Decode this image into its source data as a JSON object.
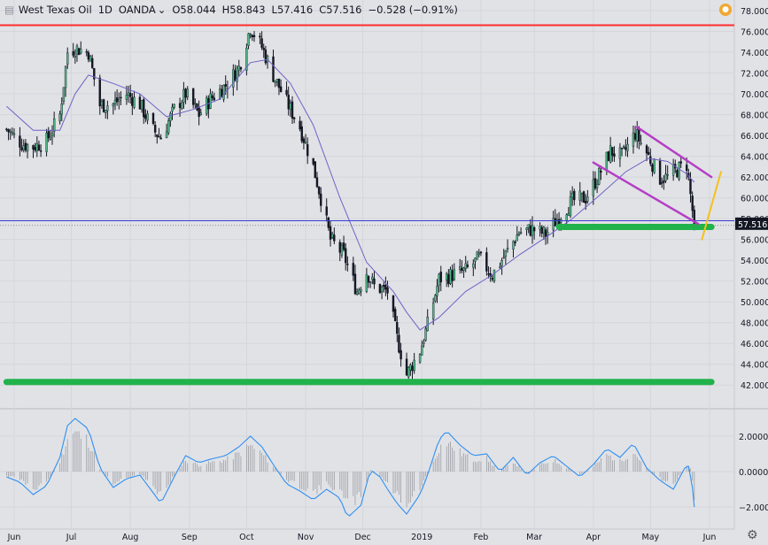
{
  "header": {
    "symbol": "West Texas Oil",
    "interval": "1D",
    "broker": "OANDA",
    "open_label": "O58.044",
    "high_label": "H58.843",
    "low_label": "L57.416",
    "close_label": "C57.516",
    "change_label": "−0.528 (−0.91%)"
  },
  "alert_icon": "alert-icon",
  "settings_icon": "gear-icon",
  "colors": {
    "background": "#e1e2e6",
    "candle_up": "#53b987",
    "candle_down": "#131722",
    "sma": "#6f62c7",
    "resistance": "#ff2d2d",
    "support": "#21b24b",
    "channel": "#b43fc5",
    "projection": "#f5c01a",
    "oscillator": "#2f8ff0",
    "price_line": "#3a3ad6"
  },
  "chart_data": [
    {
      "type": "candlestick",
      "title": "West Texas Oil 1D OANDA",
      "ylim": [
        41.0,
        78.0
      ],
      "y_ticks": [
        "78.000",
        "76.000",
        "74.000",
        "72.000",
        "70.000",
        "68.000",
        "66.000",
        "64.000",
        "62.000",
        "60.000",
        "58.000",
        "56.000",
        "54.000",
        "52.000",
        "50.000",
        "48.000",
        "46.000",
        "44.000",
        "42.000"
      ],
      "x_ticks": [
        "Jun",
        "Jul",
        "Aug",
        "Sep",
        "Oct",
        "Nov",
        "Dec",
        "2019",
        "Feb",
        "Mar",
        "Apr",
        "May",
        "Jun"
      ],
      "last_price_label": "57.516",
      "last_price": 57.516,
      "close_path": [
        [
          "2018-05-28",
          66.6
        ],
        [
          "2018-06-05",
          65.2
        ],
        [
          "2018-06-11",
          64.9
        ],
        [
          "2018-06-18",
          65.5
        ],
        [
          "2018-06-25",
          68.0
        ],
        [
          "2018-06-29",
          74.0
        ],
        [
          "2018-07-03",
          74.4
        ],
        [
          "2018-07-10",
          74.0
        ],
        [
          "2018-07-16",
          68.9
        ],
        [
          "2018-07-23",
          69.0
        ],
        [
          "2018-07-30",
          70.0
        ],
        [
          "2018-08-06",
          69.0
        ],
        [
          "2018-08-13",
          66.5
        ],
        [
          "2018-08-17",
          65.8
        ],
        [
          "2018-08-24",
          68.5
        ],
        [
          "2018-08-30",
          70.0
        ],
        [
          "2018-09-06",
          68.0
        ],
        [
          "2018-09-12",
          69.5
        ],
        [
          "2018-09-20",
          70.8
        ],
        [
          "2018-09-27",
          72.5
        ],
        [
          "2018-10-03",
          76.4
        ],
        [
          "2018-10-09",
          74.5
        ],
        [
          "2018-10-15",
          71.8
        ],
        [
          "2018-10-22",
          69.2
        ],
        [
          "2018-10-29",
          66.8
        ],
        [
          "2018-11-05",
          63.0
        ],
        [
          "2018-11-09",
          60.0
        ],
        [
          "2018-11-14",
          56.0
        ],
        [
          "2018-11-21",
          54.5
        ],
        [
          "2018-11-28",
          51.0
        ],
        [
          "2018-12-03",
          52.9
        ],
        [
          "2018-12-07",
          51.5
        ],
        [
          "2018-12-14",
          51.0
        ],
        [
          "2018-12-19",
          46.5
        ],
        [
          "2018-12-24",
          43.0
        ],
        [
          "2018-12-31",
          45.3
        ],
        [
          "2019-01-04",
          47.8
        ],
        [
          "2019-01-10",
          52.2
        ],
        [
          "2019-01-17",
          52.6
        ],
        [
          "2019-01-24",
          53.0
        ],
        [
          "2019-01-31",
          54.2
        ],
        [
          "2019-02-07",
          52.6
        ],
        [
          "2019-02-14",
          54.6
        ],
        [
          "2019-02-21",
          56.7
        ],
        [
          "2019-02-28",
          57.0
        ],
        [
          "2019-03-07",
          56.5
        ],
        [
          "2019-03-14",
          58.2
        ],
        [
          "2019-03-21",
          59.7
        ],
        [
          "2019-03-28",
          60.0
        ],
        [
          "2019-04-04",
          62.2
        ],
        [
          "2019-04-10",
          64.5
        ],
        [
          "2019-04-16",
          64.0
        ],
        [
          "2019-04-23",
          66.2
        ],
        [
          "2019-04-30",
          64.0
        ],
        [
          "2019-05-06",
          61.9
        ],
        [
          "2019-05-10",
          62.0
        ],
        [
          "2019-05-16",
          62.8
        ],
        [
          "2019-05-20",
          63.2
        ],
        [
          "2019-05-23",
          58.8
        ],
        [
          "2019-05-24",
          57.5
        ]
      ],
      "sma_path": [
        [
          "2018-05-28",
          68.8
        ],
        [
          "2018-06-11",
          66.5
        ],
        [
          "2018-06-25",
          66.5
        ],
        [
          "2018-07-03",
          70.0
        ],
        [
          "2018-07-10",
          71.8
        ],
        [
          "2018-07-23",
          71.0
        ],
        [
          "2018-08-06",
          70.0
        ],
        [
          "2018-08-20",
          67.8
        ],
        [
          "2018-09-03",
          68.5
        ],
        [
          "2018-09-17",
          69.5
        ],
        [
          "2018-10-03",
          73.0
        ],
        [
          "2018-10-12",
          73.3
        ],
        [
          "2018-10-24",
          71.0
        ],
        [
          "2018-11-05",
          67.0
        ],
        [
          "2018-11-19",
          60.0
        ],
        [
          "2018-12-03",
          53.8
        ],
        [
          "2018-12-17",
          51.0
        ],
        [
          "2018-12-24",
          49.0
        ],
        [
          "2018-12-31",
          47.3
        ],
        [
          "2019-01-10",
          48.5
        ],
        [
          "2019-01-24",
          51.0
        ],
        [
          "2019-02-07",
          52.6
        ],
        [
          "2019-02-21",
          54.5
        ],
        [
          "2019-03-07",
          56.2
        ],
        [
          "2019-03-21",
          58.0
        ],
        [
          "2019-04-04",
          60.2
        ],
        [
          "2019-04-18",
          62.5
        ],
        [
          "2019-04-30",
          63.8
        ],
        [
          "2019-05-10",
          63.5
        ],
        [
          "2019-05-20",
          62.3
        ],
        [
          "2019-05-24",
          61.5
        ]
      ],
      "resistance_level": 76.6,
      "support_levels": [
        {
          "start": "2018-05-28",
          "end": "2019-06-02",
          "y": 42.3
        },
        {
          "start": "2019-03-14",
          "end": "2019-06-02",
          "y": 57.2
        }
      ],
      "price_line": 57.8,
      "channel_lines": [
        {
          "start": [
            "2019-04-24",
            66.8
          ],
          "end": [
            "2019-06-02",
            62.0
          ]
        },
        {
          "start": [
            "2019-04-01",
            63.4
          ],
          "end": [
            "2019-05-26",
            57.5
          ]
        }
      ],
      "projection_line": {
        "start": [
          "2019-05-28",
          56.0
        ],
        "end": [
          "2019-06-07",
          62.5
        ]
      }
    },
    {
      "type": "line",
      "title": "",
      "ylim": [
        -2.75,
        3.0
      ],
      "y_ticks": [
        "2.0000",
        "0.0000",
        "-2.0000"
      ],
      "series": [
        {
          "values": [
            [
              "2018-05-28",
              -0.3
            ],
            [
              "2018-06-04",
              -0.6
            ],
            [
              "2018-06-11",
              -1.3
            ],
            [
              "2018-06-18",
              -0.8
            ],
            [
              "2018-06-25",
              0.8
            ],
            [
              "2018-06-29",
              2.6
            ],
            [
              "2018-07-03",
              3.0
            ],
            [
              "2018-07-10",
              2.4
            ],
            [
              "2018-07-16",
              0.2
            ],
            [
              "2018-07-23",
              -0.9
            ],
            [
              "2018-07-30",
              -0.4
            ],
            [
              "2018-08-06",
              -0.2
            ],
            [
              "2018-08-13",
              -1.2
            ],
            [
              "2018-08-17",
              -1.8
            ],
            [
              "2018-08-24",
              -0.3
            ],
            [
              "2018-08-30",
              0.9
            ],
            [
              "2018-09-06",
              0.5
            ],
            [
              "2018-09-12",
              0.7
            ],
            [
              "2018-09-20",
              0.9
            ],
            [
              "2018-09-27",
              1.4
            ],
            [
              "2018-10-03",
              2.0
            ],
            [
              "2018-10-09",
              1.4
            ],
            [
              "2018-10-15",
              0.4
            ],
            [
              "2018-10-22",
              -0.7
            ],
            [
              "2018-10-29",
              -1.1
            ],
            [
              "2018-11-05",
              -1.6
            ],
            [
              "2018-11-12",
              -1.0
            ],
            [
              "2018-11-19",
              -1.5
            ],
            [
              "2018-11-23",
              -2.6
            ],
            [
              "2018-11-30",
              -1.9
            ],
            [
              "2018-12-05",
              0.1
            ],
            [
              "2018-12-10",
              -0.3
            ],
            [
              "2018-12-14",
              -1.0
            ],
            [
              "2018-12-19",
              -1.8
            ],
            [
              "2018-12-24",
              -2.4
            ],
            [
              "2018-12-31",
              -1.3
            ],
            [
              "2019-01-04",
              -0.2
            ],
            [
              "2019-01-10",
              1.8
            ],
            [
              "2019-01-14",
              2.3
            ],
            [
              "2019-01-21",
              1.5
            ],
            [
              "2019-01-28",
              0.9
            ],
            [
              "2019-02-04",
              1.0
            ],
            [
              "2019-02-11",
              0.0
            ],
            [
              "2019-02-18",
              0.8
            ],
            [
              "2019-02-25",
              -0.2
            ],
            [
              "2019-03-04",
              0.5
            ],
            [
              "2019-03-11",
              0.9
            ],
            [
              "2019-03-18",
              0.3
            ],
            [
              "2019-03-25",
              -0.3
            ],
            [
              "2019-04-01",
              0.4
            ],
            [
              "2019-04-08",
              1.3
            ],
            [
              "2019-04-15",
              0.8
            ],
            [
              "2019-04-22",
              1.6
            ],
            [
              "2019-04-29",
              0.2
            ],
            [
              "2019-05-06",
              -0.5
            ],
            [
              "2019-05-13",
              -1.0
            ],
            [
              "2019-05-20",
              0.4
            ],
            [
              "2019-05-22",
              0.2
            ],
            [
              "2019-05-24",
              -2.0
            ]
          ]
        }
      ]
    }
  ]
}
